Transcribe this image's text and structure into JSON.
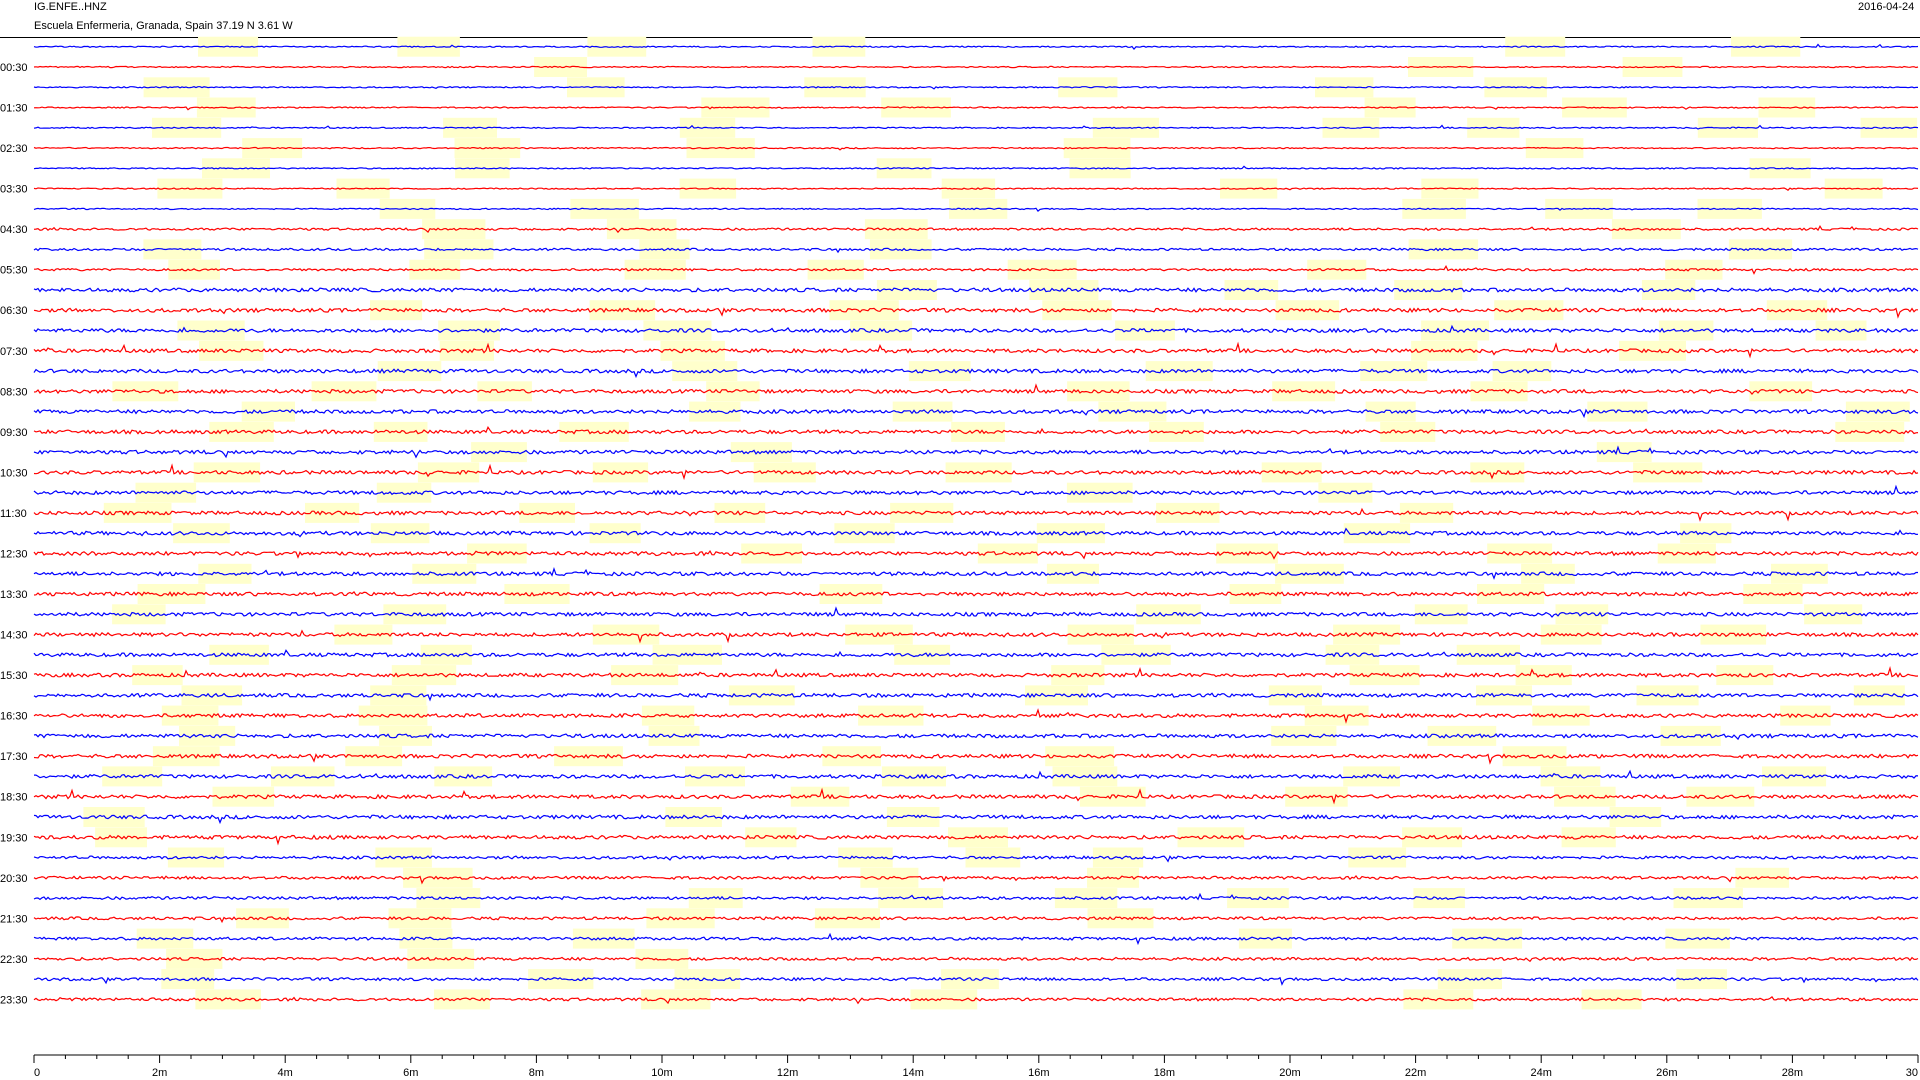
{
  "header": {
    "station": "IG.ENFE..HNZ",
    "location": "Escuela Enfermeria, Granada, Spain  37.19 N 3.61 W",
    "date": "2016-04-24"
  },
  "chart_data": {
    "type": "line",
    "title": "IG.ENFE..HNZ",
    "subtitle": "Escuela Enfermeria, Granada, Spain  37.19 N 3.61 W",
    "xlabel": "",
    "ylabel": "",
    "xlim": [
      0,
      30
    ],
    "x_unit": "minutes",
    "x_ticks": [
      {
        "value": 0,
        "label": "0"
      },
      {
        "value": 2,
        "label": "2m"
      },
      {
        "value": 4,
        "label": "4m"
      },
      {
        "value": 6,
        "label": "6m"
      },
      {
        "value": 8,
        "label": "8m"
      },
      {
        "value": 10,
        "label": "10m"
      },
      {
        "value": 12,
        "label": "12m"
      },
      {
        "value": 14,
        "label": "14m"
      },
      {
        "value": 16,
        "label": "16m"
      },
      {
        "value": 18,
        "label": "18m"
      },
      {
        "value": 20,
        "label": "20m"
      },
      {
        "value": 22,
        "label": "22m"
      },
      {
        "value": 24,
        "label": "24m"
      },
      {
        "value": 26,
        "label": "26m"
      },
      {
        "value": 28,
        "label": "28m"
      },
      {
        "value": 30,
        "label": "30"
      }
    ],
    "rows_per_day": 48,
    "minutes_per_row": 30,
    "row_labels": [
      "00:30",
      "01:30",
      "02:30",
      "03:30",
      "04:30",
      "05:30",
      "06:30",
      "07:30",
      "08:30",
      "09:30",
      "10:30",
      "11:30",
      "12:30",
      "13:30",
      "14:30",
      "15:30",
      "16:30",
      "17:30",
      "18:30",
      "19:30",
      "20:30",
      "21:30",
      "22:30",
      "23:30"
    ],
    "trace_colors": [
      "#0000ff",
      "#ff0000"
    ],
    "gap_color": "#ffffcc",
    "grid": false,
    "legend": "none"
  }
}
